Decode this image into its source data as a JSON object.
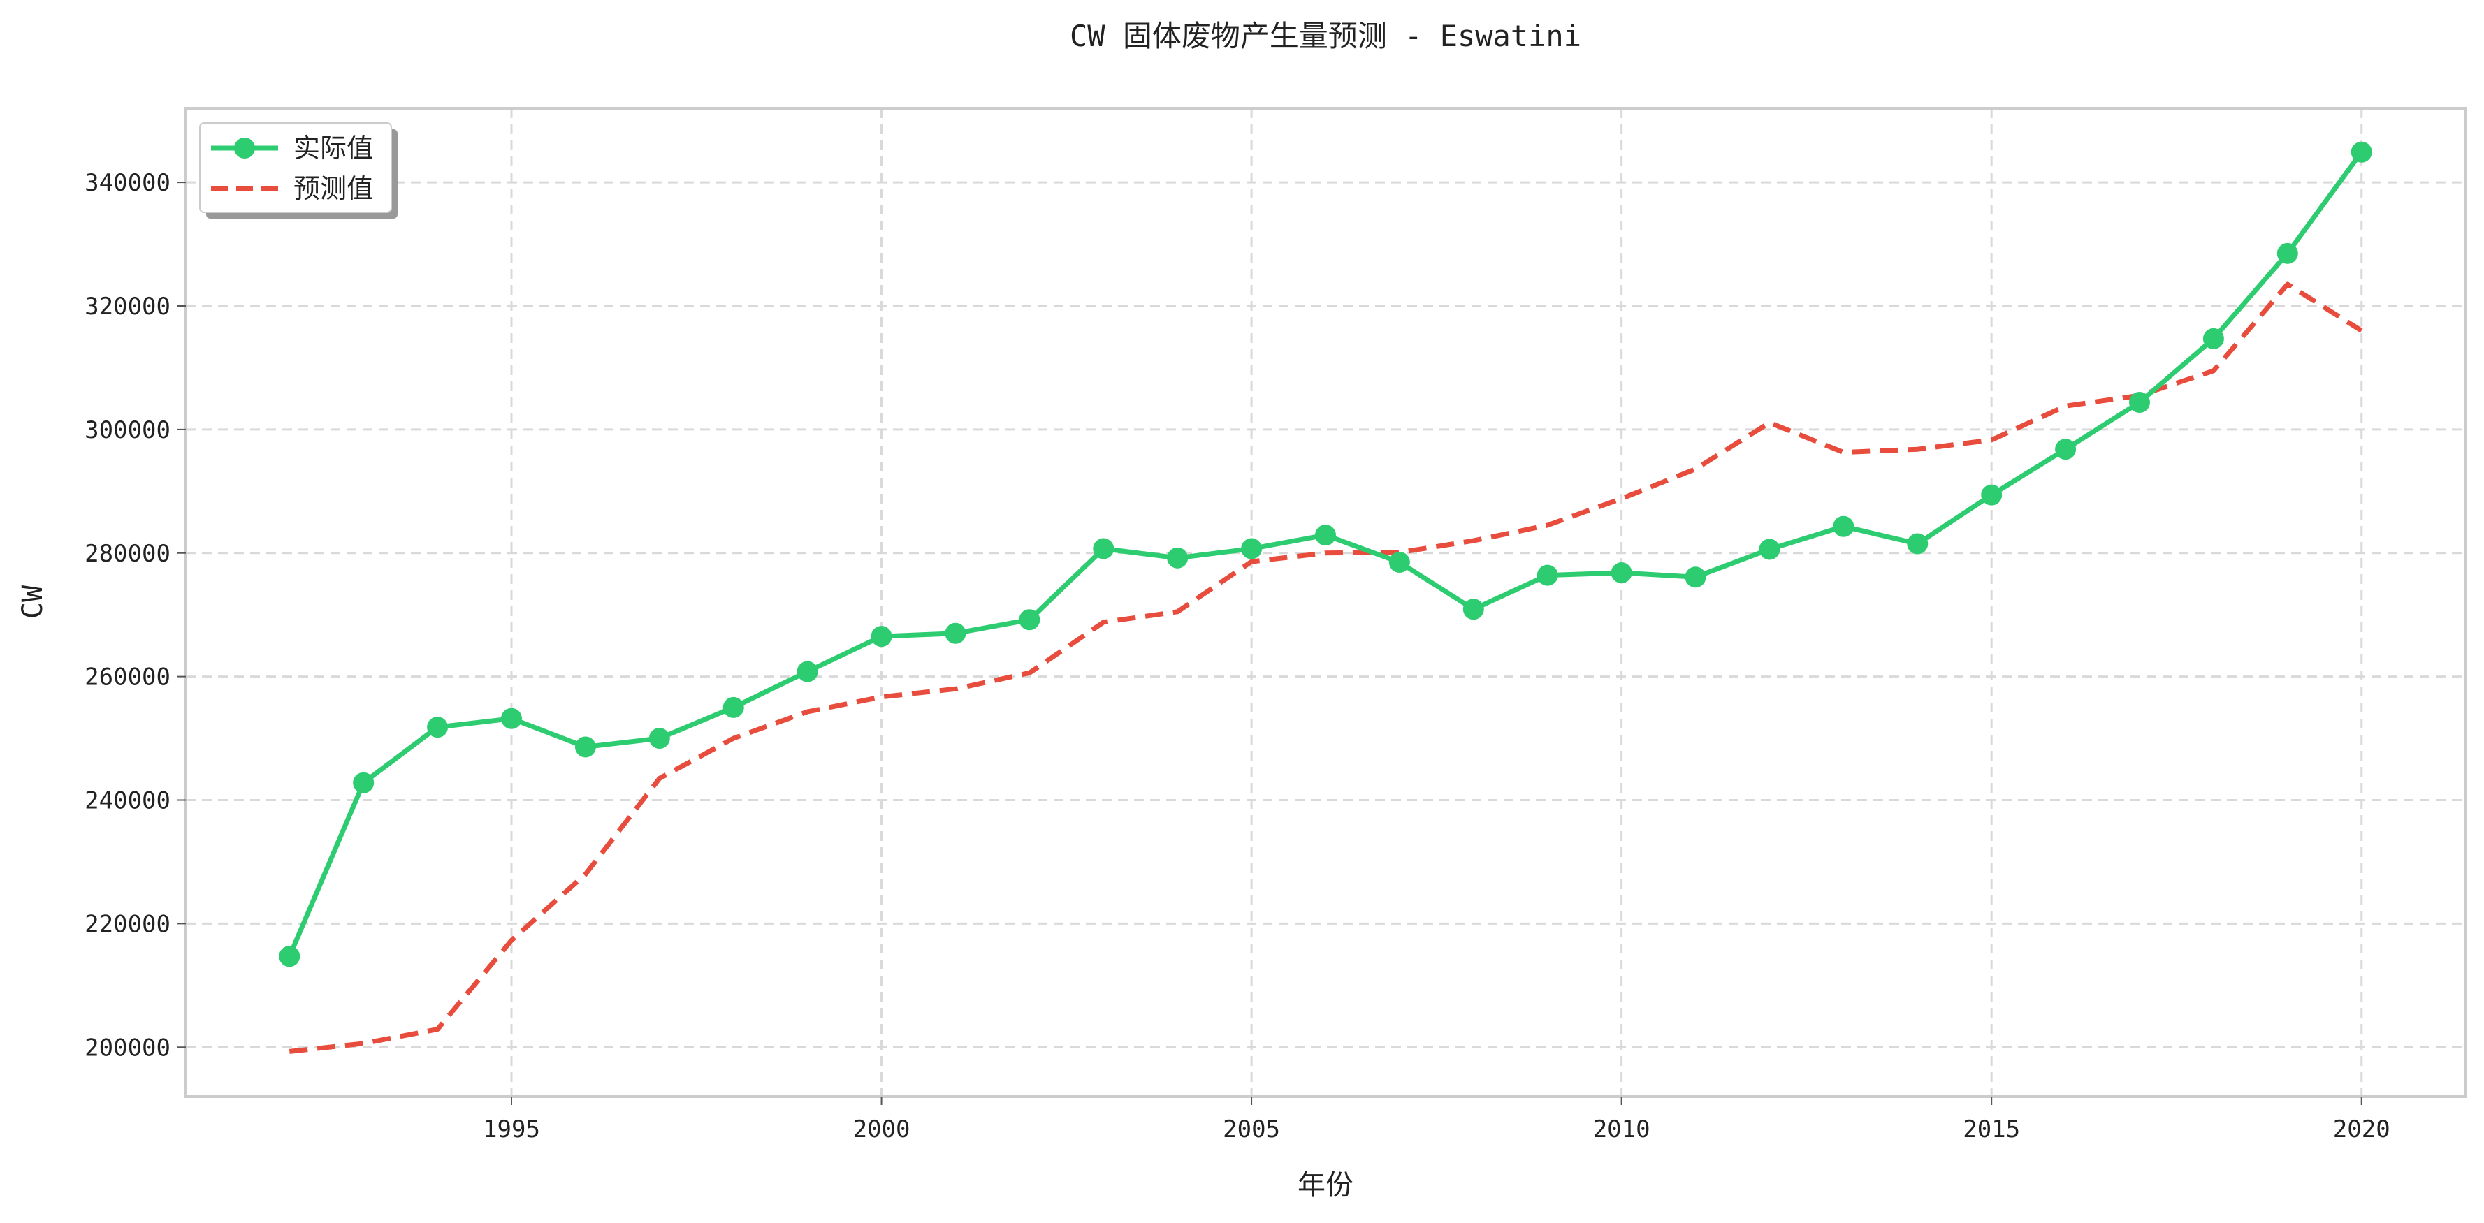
{
  "chart_data": {
    "type": "line",
    "title": "CW 固体废物产生量预测 - Eswatini",
    "xlabel": "年份",
    "ylabel": "CW",
    "xlim": [
      1990.6,
      2021.4
    ],
    "ylim": [
      192000,
      352000
    ],
    "x_ticks": [
      1995,
      2000,
      2005,
      2010,
      2015,
      2020
    ],
    "y_ticks": [
      200000,
      220000,
      240000,
      260000,
      280000,
      300000,
      320000,
      340000
    ],
    "grid": true,
    "legend_position": "top-left",
    "x": [
      1992,
      1993,
      1994,
      1995,
      1996,
      1997,
      1998,
      1999,
      2000,
      2001,
      2002,
      2003,
      2004,
      2005,
      2006,
      2007,
      2008,
      2009,
      2010,
      2011,
      2012,
      2013,
      2014,
      2015,
      2016,
      2017,
      2018,
      2019,
      2020
    ],
    "series": [
      {
        "name": "实际值",
        "color": "#2ecc71",
        "style": "solid-markers",
        "values": [
          214700,
          242800,
          251800,
          253200,
          248600,
          250000,
          255000,
          260800,
          266500,
          267000,
          269200,
          280700,
          279200,
          280700,
          282900,
          278500,
          270900,
          276400,
          276800,
          276100,
          280600,
          284300,
          281500,
          289400,
          296800,
          304400,
          314700,
          328500,
          344900
        ]
      },
      {
        "name": "预测值",
        "color": "#e74c3c",
        "style": "dashed",
        "values": [
          199300,
          200600,
          202900,
          217300,
          228000,
          243500,
          250000,
          254300,
          256700,
          258000,
          260600,
          268800,
          270500,
          278600,
          280000,
          280100,
          282000,
          284500,
          288800,
          293600,
          301100,
          296300,
          296800,
          298300,
          303800,
          305500,
          309500,
          323500,
          316000
        ]
      }
    ]
  }
}
